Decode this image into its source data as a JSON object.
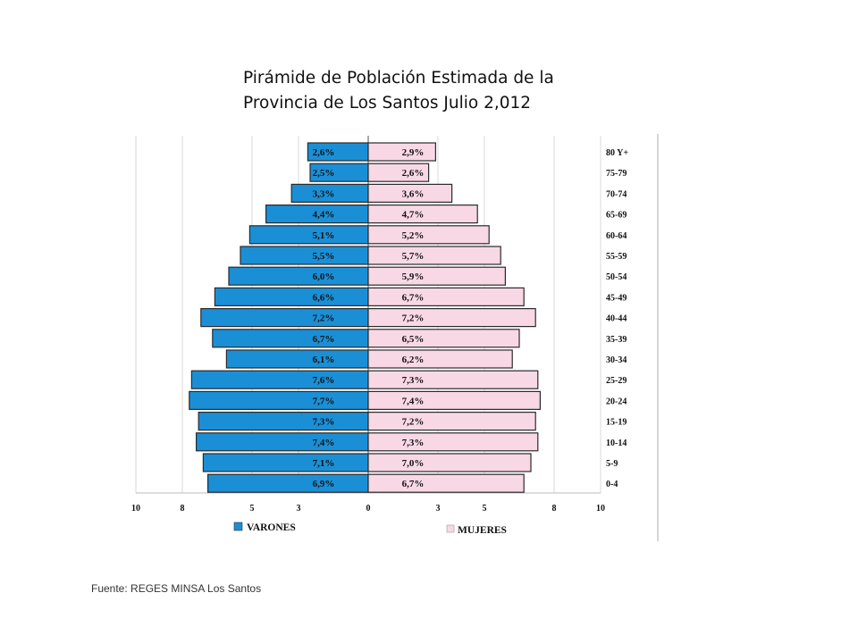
{
  "title": {
    "line1": "Pirámide de Población Estimada  de la",
    "line2": "Provincia de Los Santos  Julio 2,012"
  },
  "source": "Fuente:   REGES MINSA Los Santos",
  "colors": {
    "varones": "#1b8fd6",
    "mujeres": "#f9d8e6",
    "bar_border": "#2a2a2a",
    "axis": "#999999"
  },
  "chart_data": {
    "type": "bar",
    "orientation": "horizontal-pyramid",
    "categories": [
      "80 Y+",
      "75-79",
      "70-74",
      "65-69",
      "60-64",
      "55-59",
      "50-54",
      "45-49",
      "40-44",
      "35-39",
      "30-34",
      "25-29",
      "20-24",
      "15-19",
      "10-14",
      "5-9",
      "0-4"
    ],
    "series": [
      {
        "name": "VARONES",
        "side": "left",
        "values": [
          2.6,
          2.5,
          3.3,
          4.4,
          5.1,
          5.5,
          6.0,
          6.6,
          7.2,
          6.7,
          6.1,
          7.6,
          7.7,
          7.3,
          7.4,
          7.1,
          6.9
        ],
        "labels": [
          "2,6%",
          "2,5%",
          "3,3%",
          "4,4%",
          "5,1%",
          "5,5%",
          "6,0%",
          "6,6%",
          "7,2%",
          "6,7%",
          "6,1%",
          "7,6%",
          "7,7%",
          "7,3%",
          "7,4%",
          "7,1%",
          "6,9%"
        ]
      },
      {
        "name": "MUJERES",
        "side": "right",
        "values": [
          2.9,
          2.6,
          3.6,
          4.7,
          5.2,
          5.7,
          5.9,
          6.7,
          7.2,
          6.5,
          6.2,
          7.3,
          7.4,
          7.2,
          7.3,
          7.0,
          6.7
        ],
        "labels": [
          "2,9%",
          "2,6%",
          "3,6%",
          "4,7%",
          "5,2%",
          "5,7%",
          "5,9%",
          "6,7%",
          "7,2%",
          "6,5%",
          "6,2%",
          "7,3%",
          "7,4%",
          "7,2%",
          "7,3%",
          "7,0%",
          "6,7%"
        ]
      }
    ],
    "x_ticks_left": [
      "10",
      "8",
      "5",
      "3",
      "0"
    ],
    "x_tick_values_left": [
      10,
      8,
      5,
      3,
      0
    ],
    "x_ticks_right": [
      "3",
      "5",
      "8",
      "10"
    ],
    "x_tick_values_right": [
      3,
      5,
      8,
      10
    ],
    "xlim": [
      0,
      10
    ],
    "legend": {
      "position": "bottom"
    },
    "grid": true
  }
}
